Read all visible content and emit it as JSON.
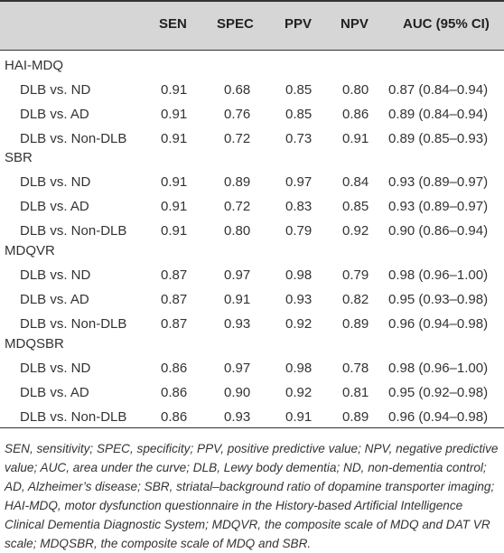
{
  "headers": [
    "SEN",
    "SPEC",
    "PPV",
    "NPV",
    "AUC (95% CI)"
  ],
  "groups": [
    {
      "name": "HAI-MDQ",
      "rows": [
        {
          "label": "DLB vs. ND",
          "sen": "0.91",
          "spec": "0.68",
          "ppv": "0.85",
          "npv": "0.80",
          "auc": "0.87 (0.84–0.94)"
        },
        {
          "label": "DLB vs. AD",
          "sen": "0.91",
          "spec": "0.76",
          "ppv": "0.85",
          "npv": "0.86",
          "auc": "0.89 (0.84–0.94)"
        },
        {
          "label": "DLB vs. Non-DLB",
          "sen": "0.91",
          "spec": "0.72",
          "ppv": "0.73",
          "npv": "0.91",
          "auc": "0.89 (0.85–0.93)"
        }
      ]
    },
    {
      "name": "SBR",
      "rows": [
        {
          "label": "DLB vs. ND",
          "sen": "0.91",
          "spec": "0.89",
          "ppv": "0.97",
          "npv": "0.84",
          "auc": "0.93 (0.89–0.97)"
        },
        {
          "label": "DLB vs. AD",
          "sen": "0.91",
          "spec": "0.72",
          "ppv": "0.83",
          "npv": "0.85",
          "auc": "0.93 (0.89–0.97)"
        },
        {
          "label": "DLB vs. Non-DLB",
          "sen": "0.91",
          "spec": "0.80",
          "ppv": "0.79",
          "npv": "0.92",
          "auc": "0.90 (0.86–0.94)"
        }
      ]
    },
    {
      "name": "MDQVR",
      "rows": [
        {
          "label": "DLB vs. ND",
          "sen": "0.87",
          "spec": "0.97",
          "ppv": "0.98",
          "npv": "0.79",
          "auc": "0.98 (0.96–1.00)"
        },
        {
          "label": "DLB vs. AD",
          "sen": "0.87",
          "spec": "0.91",
          "ppv": "0.93",
          "npv": "0.82",
          "auc": "0.95 (0.93–0.98)"
        },
        {
          "label": "DLB vs. Non-DLB",
          "sen": "0.87",
          "spec": "0.93",
          "ppv": "0.92",
          "npv": "0.89",
          "auc": "0.96 (0.94–0.98)"
        }
      ]
    },
    {
      "name": "MDQSBR",
      "rows": [
        {
          "label": "DLB vs. ND",
          "sen": "0.86",
          "spec": "0.97",
          "ppv": "0.98",
          "npv": "0.78",
          "auc": "0.98 (0.96–1.00)"
        },
        {
          "label": "DLB vs. AD",
          "sen": "0.86",
          "spec": "0.90",
          "ppv": "0.92",
          "npv": "0.81",
          "auc": "0.95 (0.92–0.98)"
        },
        {
          "label": "DLB vs. Non-DLB",
          "sen": "0.86",
          "spec": "0.93",
          "ppv": "0.91",
          "npv": "0.89",
          "auc": "0.96 (0.94–0.98)"
        }
      ]
    }
  ],
  "footnote": "SEN, sensitivity; SPEC, specificity; PPV, positive predictive value; NPV, negative predictive value; AUC, area under the curve; DLB, Lewy body dementia; ND, non-dementia control; AD, Alzheimer’s disease; SBR, striatal–background ratio of dopamine transporter imaging; HAI-MDQ, motor dysfunction questionnaire in the History-based Artificial Intelligence Clinical Dementia Diagnostic System; MDQVR, the composite scale of MDQ and DAT VR scale; MDQSBR, the composite scale of MDQ and SBR."
}
